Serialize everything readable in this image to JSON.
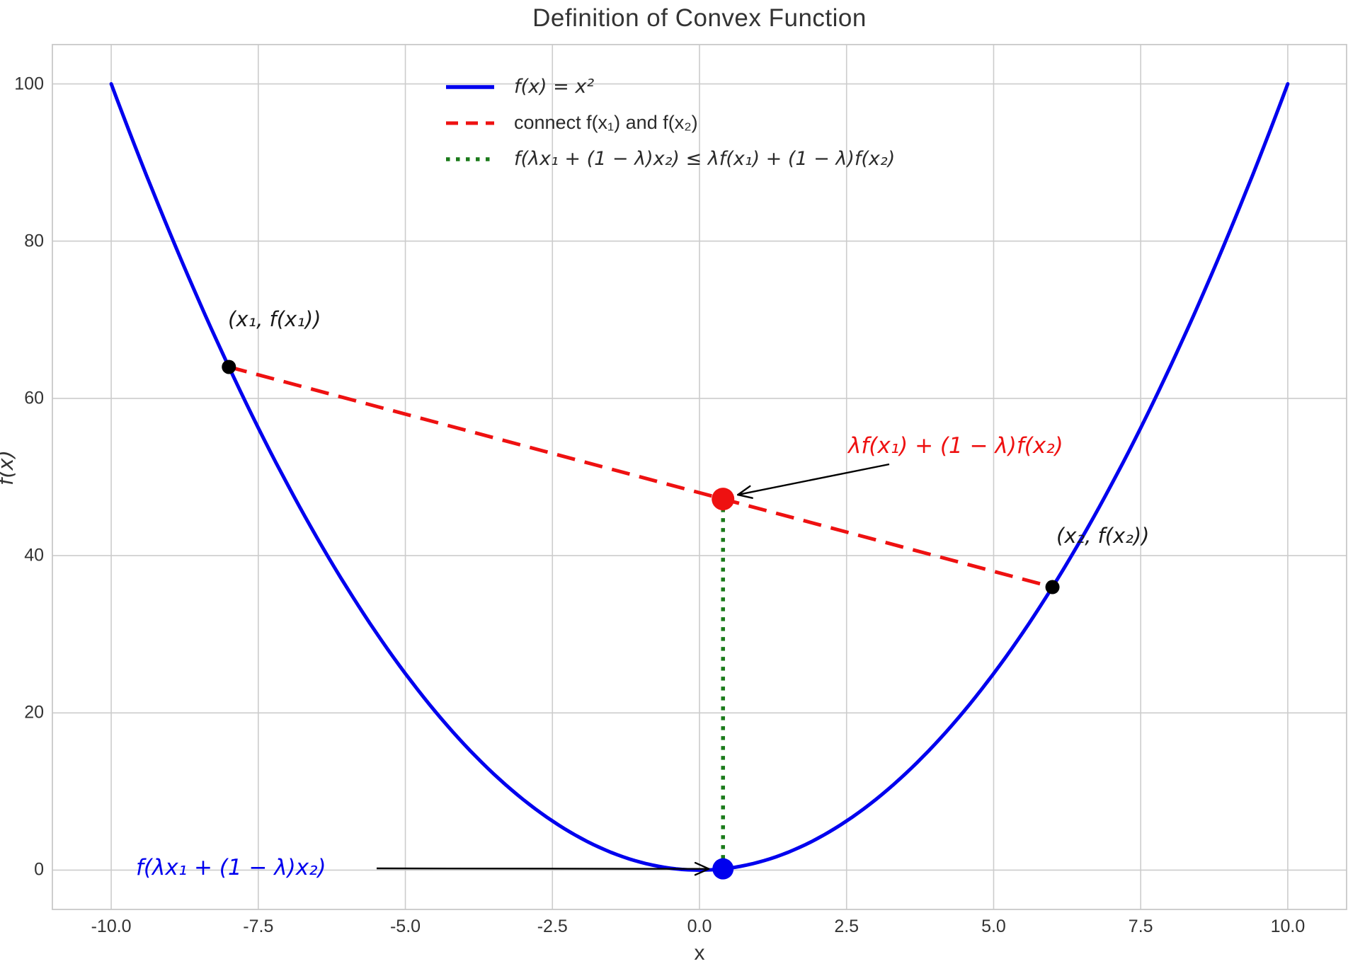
{
  "title": "Definition of Convex Function",
  "colors": {
    "curve": "#0000ee",
    "chord": "#ee1111",
    "vertical": "#1a7a1a",
    "black_point": "#000000",
    "red_point": "#ee1111",
    "blue_point": "#0000ee",
    "grid": "#cccccc",
    "spine": "#c8c8c8",
    "arrow": "#000000",
    "text": "#333333"
  },
  "chart_data": {
    "type": "line",
    "title": "Definition of Convex Function",
    "xlabel": "x",
    "ylabel": "f(x)",
    "xlim": [
      -11,
      11
    ],
    "ylim": [
      -5,
      105
    ],
    "grid": true,
    "xticks": [
      -10,
      -7.5,
      -5,
      -2.5,
      0,
      2.5,
      5,
      7.5,
      10
    ],
    "xtick_labels": [
      "-10.0",
      "-7.5",
      "-5.0",
      "-2.5",
      "0.0",
      "2.5",
      "5.0",
      "7.5",
      "10.0"
    ],
    "yticks": [
      0,
      20,
      40,
      60,
      80,
      100
    ],
    "ytick_labels": [
      "0",
      "20",
      "40",
      "60",
      "80",
      "100"
    ],
    "function": "f(x) = x^2",
    "curve": {
      "name": "f(x) = x²",
      "x_start": -10,
      "x_end": 10,
      "samples_step": 0.1
    },
    "x1": -8,
    "f_x1": 64,
    "x2": 6,
    "f_x2": 36,
    "lambda": 0.4,
    "chord": {
      "name": "connect f(x1) and f(x2)",
      "points": [
        [
          -8,
          64
        ],
        [
          6,
          36
        ]
      ]
    },
    "vertical_segment": {
      "points": [
        [
          0.4,
          0.16
        ],
        [
          0.4,
          47.2
        ]
      ]
    },
    "points": [
      {
        "id": "p1",
        "x": -8,
        "y": 64,
        "color_key": "black_point",
        "r": 10
      },
      {
        "id": "p2",
        "x": 6,
        "y": 36,
        "color_key": "black_point",
        "r": 10
      },
      {
        "id": "mix_f",
        "x": 0.4,
        "y": 47.2,
        "color_key": "red_point",
        "r": 16
      },
      {
        "id": "f_mix",
        "x": 0.4,
        "y": 0.16,
        "color_key": "blue_point",
        "r": 15
      }
    ]
  },
  "legend": {
    "items": [
      {
        "label": "f(x) = x²",
        "color": "#0000ee",
        "style": "solid"
      },
      {
        "label": "connect f(x₁) and f(x₂)",
        "color": "#ee1111",
        "style": "dashed"
      },
      {
        "label": "f(λx₁ + (1 − λ)x₂) ≤ λf(x₁) + (1 − λ)f(x₂)",
        "color": "#1a7a1a",
        "style": "dotted"
      }
    ]
  },
  "annotations": {
    "point1_label": "(x₁, f(x₁))",
    "point2_label": "(x₂, f(x₂))",
    "red_label": "λf(x₁) + (1 − λ)f(x₂)",
    "blue_label": "f(λx₁ + (1 − λ)x₂)"
  }
}
